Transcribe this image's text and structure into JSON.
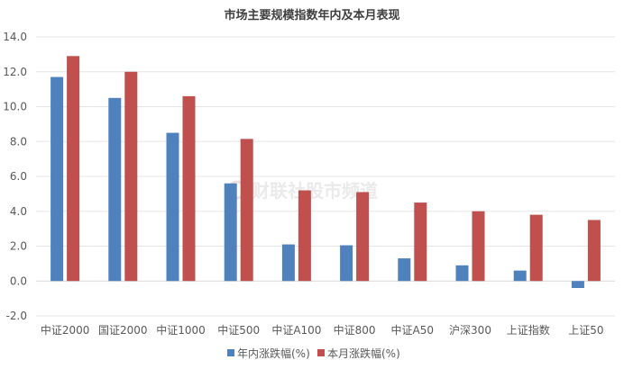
{
  "chart_data": {
    "type": "bar",
    "title": "市场主要规模指数年内及本月表现",
    "categories": [
      "中证2000",
      "国证2000",
      "中证1000",
      "中证500",
      "中证A100",
      "中证800",
      "中证A50",
      "沪深300",
      "上证指数",
      "上证50"
    ],
    "series": [
      {
        "name": "年内涨跌幅(%)",
        "color": "#4f81bd",
        "values": [
          11.7,
          10.5,
          8.5,
          5.6,
          2.1,
          2.05,
          1.3,
          0.9,
          0.6,
          -0.4
        ]
      },
      {
        "name": "本月涨跌幅(%)",
        "color": "#c0504d",
        "values": [
          12.9,
          12.0,
          10.6,
          8.15,
          5.2,
          5.1,
          4.5,
          4.0,
          3.8,
          3.5
        ]
      }
    ],
    "ylim": [
      -2.0,
      14.0
    ],
    "yticks": [
      "-2.0",
      "0.0",
      "2.0",
      "4.0",
      "6.0",
      "8.0",
      "10.0",
      "12.0",
      "14.0"
    ],
    "xlabel": "",
    "ylabel": "",
    "grid": true,
    "legend_position": "bottom"
  },
  "watermark": {
    "text": "财联社股市频道"
  },
  "colors": {
    "grid": "#e6e6e6",
    "zero_line": "#d9d9d9"
  }
}
